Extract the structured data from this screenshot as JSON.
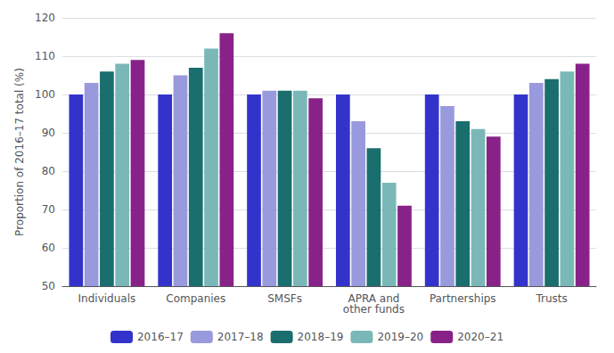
{
  "chart_data": {
    "type": "bar",
    "categories": [
      "Individuals",
      "Companies",
      "SMSFs",
      "APRA and\nother funds",
      "Partnerships",
      "Trusts"
    ],
    "series": [
      {
        "name": "2016–17",
        "color": "#3333cc",
        "values": [
          100,
          100,
          100,
          100,
          100,
          100
        ]
      },
      {
        "name": "2017–18",
        "color": "#9999dd",
        "values": [
          103,
          105,
          101,
          93,
          97,
          103
        ]
      },
      {
        "name": "2018–19",
        "color": "#1a6e6e",
        "values": [
          106,
          107,
          101,
          86,
          93,
          104
        ]
      },
      {
        "name": "2019–20",
        "color": "#7ab8b8",
        "values": [
          108,
          112,
          101,
          77,
          91,
          106
        ]
      },
      {
        "name": "2020–21",
        "color": "#882288",
        "values": [
          109,
          116,
          99,
          71,
          89,
          108
        ]
      }
    ],
    "ylabel": "Proportion of 2016–17 total (%)",
    "ylim": [
      50,
      120
    ],
    "yticks": [
      50,
      60,
      70,
      80,
      90,
      100,
      110,
      120
    ],
    "grid": true,
    "legend": "bottom"
  }
}
